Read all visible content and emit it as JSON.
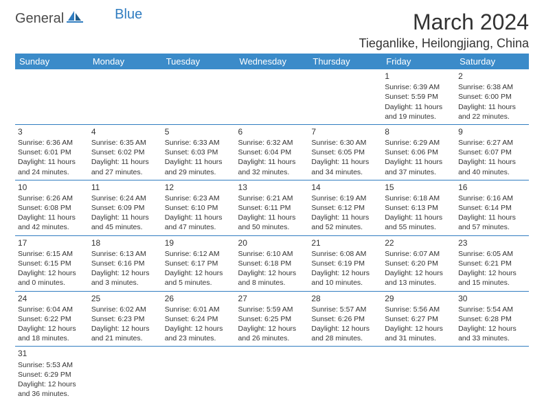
{
  "brand": {
    "text_general": "General",
    "text_blue": "Blue",
    "general_color": "#4a4a4a",
    "blue_color": "#2f7cc0"
  },
  "title": "March 2024",
  "location": "Tieganlike, Heilongjiang, China",
  "header_bg": "#3b8bc9",
  "header_text_color": "#ffffff",
  "border_color": "#2f7cc0",
  "weekdays": [
    "Sunday",
    "Monday",
    "Tuesday",
    "Wednesday",
    "Thursday",
    "Friday",
    "Saturday"
  ],
  "weeks": [
    [
      null,
      null,
      null,
      null,
      null,
      {
        "n": "1",
        "sr": "6:39 AM",
        "ss": "5:59 PM",
        "dl": "11 hours and 19 minutes."
      },
      {
        "n": "2",
        "sr": "6:38 AM",
        "ss": "6:00 PM",
        "dl": "11 hours and 22 minutes."
      }
    ],
    [
      {
        "n": "3",
        "sr": "6:36 AM",
        "ss": "6:01 PM",
        "dl": "11 hours and 24 minutes."
      },
      {
        "n": "4",
        "sr": "6:35 AM",
        "ss": "6:02 PM",
        "dl": "11 hours and 27 minutes."
      },
      {
        "n": "5",
        "sr": "6:33 AM",
        "ss": "6:03 PM",
        "dl": "11 hours and 29 minutes."
      },
      {
        "n": "6",
        "sr": "6:32 AM",
        "ss": "6:04 PM",
        "dl": "11 hours and 32 minutes."
      },
      {
        "n": "7",
        "sr": "6:30 AM",
        "ss": "6:05 PM",
        "dl": "11 hours and 34 minutes."
      },
      {
        "n": "8",
        "sr": "6:29 AM",
        "ss": "6:06 PM",
        "dl": "11 hours and 37 minutes."
      },
      {
        "n": "9",
        "sr": "6:27 AM",
        "ss": "6:07 PM",
        "dl": "11 hours and 40 minutes."
      }
    ],
    [
      {
        "n": "10",
        "sr": "6:26 AM",
        "ss": "6:08 PM",
        "dl": "11 hours and 42 minutes."
      },
      {
        "n": "11",
        "sr": "6:24 AM",
        "ss": "6:09 PM",
        "dl": "11 hours and 45 minutes."
      },
      {
        "n": "12",
        "sr": "6:23 AM",
        "ss": "6:10 PM",
        "dl": "11 hours and 47 minutes."
      },
      {
        "n": "13",
        "sr": "6:21 AM",
        "ss": "6:11 PM",
        "dl": "11 hours and 50 minutes."
      },
      {
        "n": "14",
        "sr": "6:19 AM",
        "ss": "6:12 PM",
        "dl": "11 hours and 52 minutes."
      },
      {
        "n": "15",
        "sr": "6:18 AM",
        "ss": "6:13 PM",
        "dl": "11 hours and 55 minutes."
      },
      {
        "n": "16",
        "sr": "6:16 AM",
        "ss": "6:14 PM",
        "dl": "11 hours and 57 minutes."
      }
    ],
    [
      {
        "n": "17",
        "sr": "6:15 AM",
        "ss": "6:15 PM",
        "dl": "12 hours and 0 minutes."
      },
      {
        "n": "18",
        "sr": "6:13 AM",
        "ss": "6:16 PM",
        "dl": "12 hours and 3 minutes."
      },
      {
        "n": "19",
        "sr": "6:12 AM",
        "ss": "6:17 PM",
        "dl": "12 hours and 5 minutes."
      },
      {
        "n": "20",
        "sr": "6:10 AM",
        "ss": "6:18 PM",
        "dl": "12 hours and 8 minutes."
      },
      {
        "n": "21",
        "sr": "6:08 AM",
        "ss": "6:19 PM",
        "dl": "12 hours and 10 minutes."
      },
      {
        "n": "22",
        "sr": "6:07 AM",
        "ss": "6:20 PM",
        "dl": "12 hours and 13 minutes."
      },
      {
        "n": "23",
        "sr": "6:05 AM",
        "ss": "6:21 PM",
        "dl": "12 hours and 15 minutes."
      }
    ],
    [
      {
        "n": "24",
        "sr": "6:04 AM",
        "ss": "6:22 PM",
        "dl": "12 hours and 18 minutes."
      },
      {
        "n": "25",
        "sr": "6:02 AM",
        "ss": "6:23 PM",
        "dl": "12 hours and 21 minutes."
      },
      {
        "n": "26",
        "sr": "6:01 AM",
        "ss": "6:24 PM",
        "dl": "12 hours and 23 minutes."
      },
      {
        "n": "27",
        "sr": "5:59 AM",
        "ss": "6:25 PM",
        "dl": "12 hours and 26 minutes."
      },
      {
        "n": "28",
        "sr": "5:57 AM",
        "ss": "6:26 PM",
        "dl": "12 hours and 28 minutes."
      },
      {
        "n": "29",
        "sr": "5:56 AM",
        "ss": "6:27 PM",
        "dl": "12 hours and 31 minutes."
      },
      {
        "n": "30",
        "sr": "5:54 AM",
        "ss": "6:28 PM",
        "dl": "12 hours and 33 minutes."
      }
    ],
    [
      {
        "n": "31",
        "sr": "5:53 AM",
        "ss": "6:29 PM",
        "dl": "12 hours and 36 minutes."
      },
      null,
      null,
      null,
      null,
      null,
      null
    ]
  ],
  "labels": {
    "sunrise": "Sunrise:",
    "sunset": "Sunset:",
    "daylight": "Daylight:"
  }
}
